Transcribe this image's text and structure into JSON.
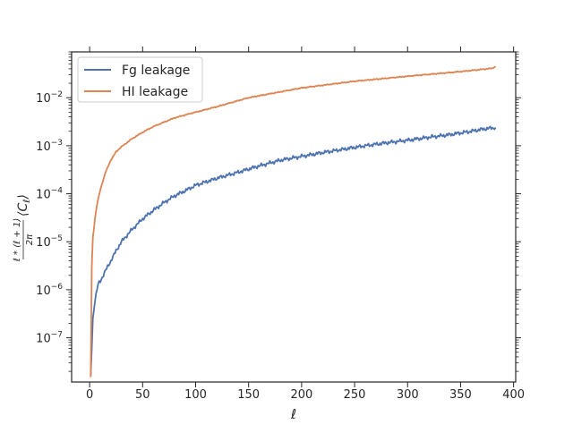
{
  "chart_data": {
    "type": "line",
    "title": "",
    "xlabel": "ℓ",
    "ylabel": "ℓ * (ℓ + 1) / 2π ⟨C_ℓ⟩",
    "xlim": [
      -17,
      402
    ],
    "ylim": [
      1.2e-08,
      0.09
    ],
    "yscale": "log",
    "grid": false,
    "legend_position": "upper-left",
    "x_ticks": [
      0,
      50,
      100,
      150,
      200,
      250,
      300,
      350,
      400
    ],
    "x_tick_labels": [
      "0",
      "50",
      "100",
      "150",
      "200",
      "250",
      "300",
      "350",
      "400"
    ],
    "y_ticks": [
      1e-07,
      1e-06,
      1e-05,
      0.0001,
      0.001,
      0.01
    ],
    "y_tick_labels": [
      {
        "base": "10",
        "exp": "−7"
      },
      {
        "base": "10",
        "exp": "−6"
      },
      {
        "base": "10",
        "exp": "−5"
      },
      {
        "base": "10",
        "exp": "−4"
      },
      {
        "base": "10",
        "exp": "−3"
      },
      {
        "base": "10",
        "exp": "−2"
      }
    ],
    "series": [
      {
        "name": "Fg leakage",
        "color": "#4c72b0",
        "x": [
          1,
          3,
          5,
          8,
          10,
          15,
          20,
          25,
          30,
          40,
          50,
          60,
          70,
          80,
          90,
          100,
          120,
          140,
          160,
          180,
          200,
          220,
          240,
          260,
          280,
          300,
          320,
          340,
          360,
          370,
          383
        ],
        "y": [
          1.5e-08,
          2.5e-07,
          6e-07,
          1.3e-06,
          1.5e-06,
          2.5e-06,
          4e-06,
          6.5e-06,
          1e-05,
          1.8e-05,
          3e-05,
          4.5e-05,
          6.5e-05,
          9e-05,
          0.000115,
          0.00015,
          0.00021,
          0.00028,
          0.00038,
          0.0005,
          0.0006,
          0.00072,
          0.00085,
          0.001,
          0.00115,
          0.0013,
          0.0015,
          0.0017,
          0.002,
          0.0022,
          0.0024
        ]
      },
      {
        "name": "HI leakage",
        "color": "#dd8452",
        "x": [
          1,
          2,
          3,
          5,
          7,
          10,
          15,
          20,
          25,
          30,
          40,
          50,
          60,
          80,
          100,
          120,
          150,
          200,
          250,
          300,
          350,
          380,
          383
        ],
        "y": [
          1.5e-08,
          3e-06,
          1.2e-05,
          3e-05,
          6e-05,
          0.00012,
          0.00028,
          0.0005,
          0.00075,
          0.00095,
          0.0014,
          0.0019,
          0.0025,
          0.0038,
          0.005,
          0.0065,
          0.01,
          0.016,
          0.022,
          0.028,
          0.035,
          0.041,
          0.045
        ]
      }
    ]
  }
}
